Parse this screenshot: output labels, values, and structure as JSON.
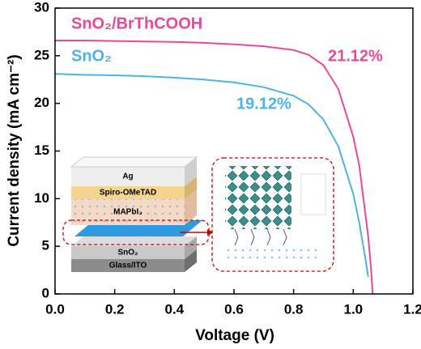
{
  "chart_data": {
    "type": "line",
    "xlabel": "Voltage (V)",
    "ylabel": "Current density (mA cm⁻²)",
    "x": [
      0,
      0.1,
      0.2,
      0.3,
      0.4,
      0.5,
      0.6,
      0.7,
      0.8,
      0.85,
      0.9,
      0.95,
      1.0,
      1.02,
      1.04,
      1.05,
      1.06,
      1.065
    ],
    "series": [
      {
        "name": "SnO₂/BrThCOOH",
        "color": "#e8489c",
        "values": [
          26.6,
          26.6,
          26.55,
          26.5,
          26.45,
          26.35,
          26.2,
          26.0,
          25.6,
          25.1,
          24.0,
          21.5,
          16.5,
          13.5,
          8.5,
          6.0,
          2.5,
          0
        ]
      },
      {
        "name": "SnO₂",
        "color": "#4db3e6",
        "values": [
          23.1,
          23.0,
          22.95,
          22.85,
          22.7,
          22.5,
          22.2,
          21.7,
          20.8,
          19.9,
          18.3,
          15.5,
          10.5,
          7.5,
          3.8,
          1.8,
          null,
          null
        ]
      }
    ],
    "annotations": [
      {
        "text": "21.12%",
        "color": "#e8489c"
      },
      {
        "text": "19.12%",
        "color": "#4db3e6"
      }
    ],
    "xlim": [
      0,
      1.2
    ],
    "xticks": [
      {
        "value": 0,
        "label": "0.0"
      },
      0.2,
      0.4,
      0.6,
      0.8,
      {
        "value": 1,
        "label": "1.0"
      },
      1.2
    ],
    "ylim": [
      0,
      30
    ],
    "yticks": [
      0,
      5,
      10,
      15,
      20,
      25,
      30
    ],
    "inset": {
      "layers": [
        "Ag",
        "Spiro-OMeTAD",
        "MAPbI₃",
        "SnO₂",
        "Glass/ITO"
      ]
    }
  }
}
